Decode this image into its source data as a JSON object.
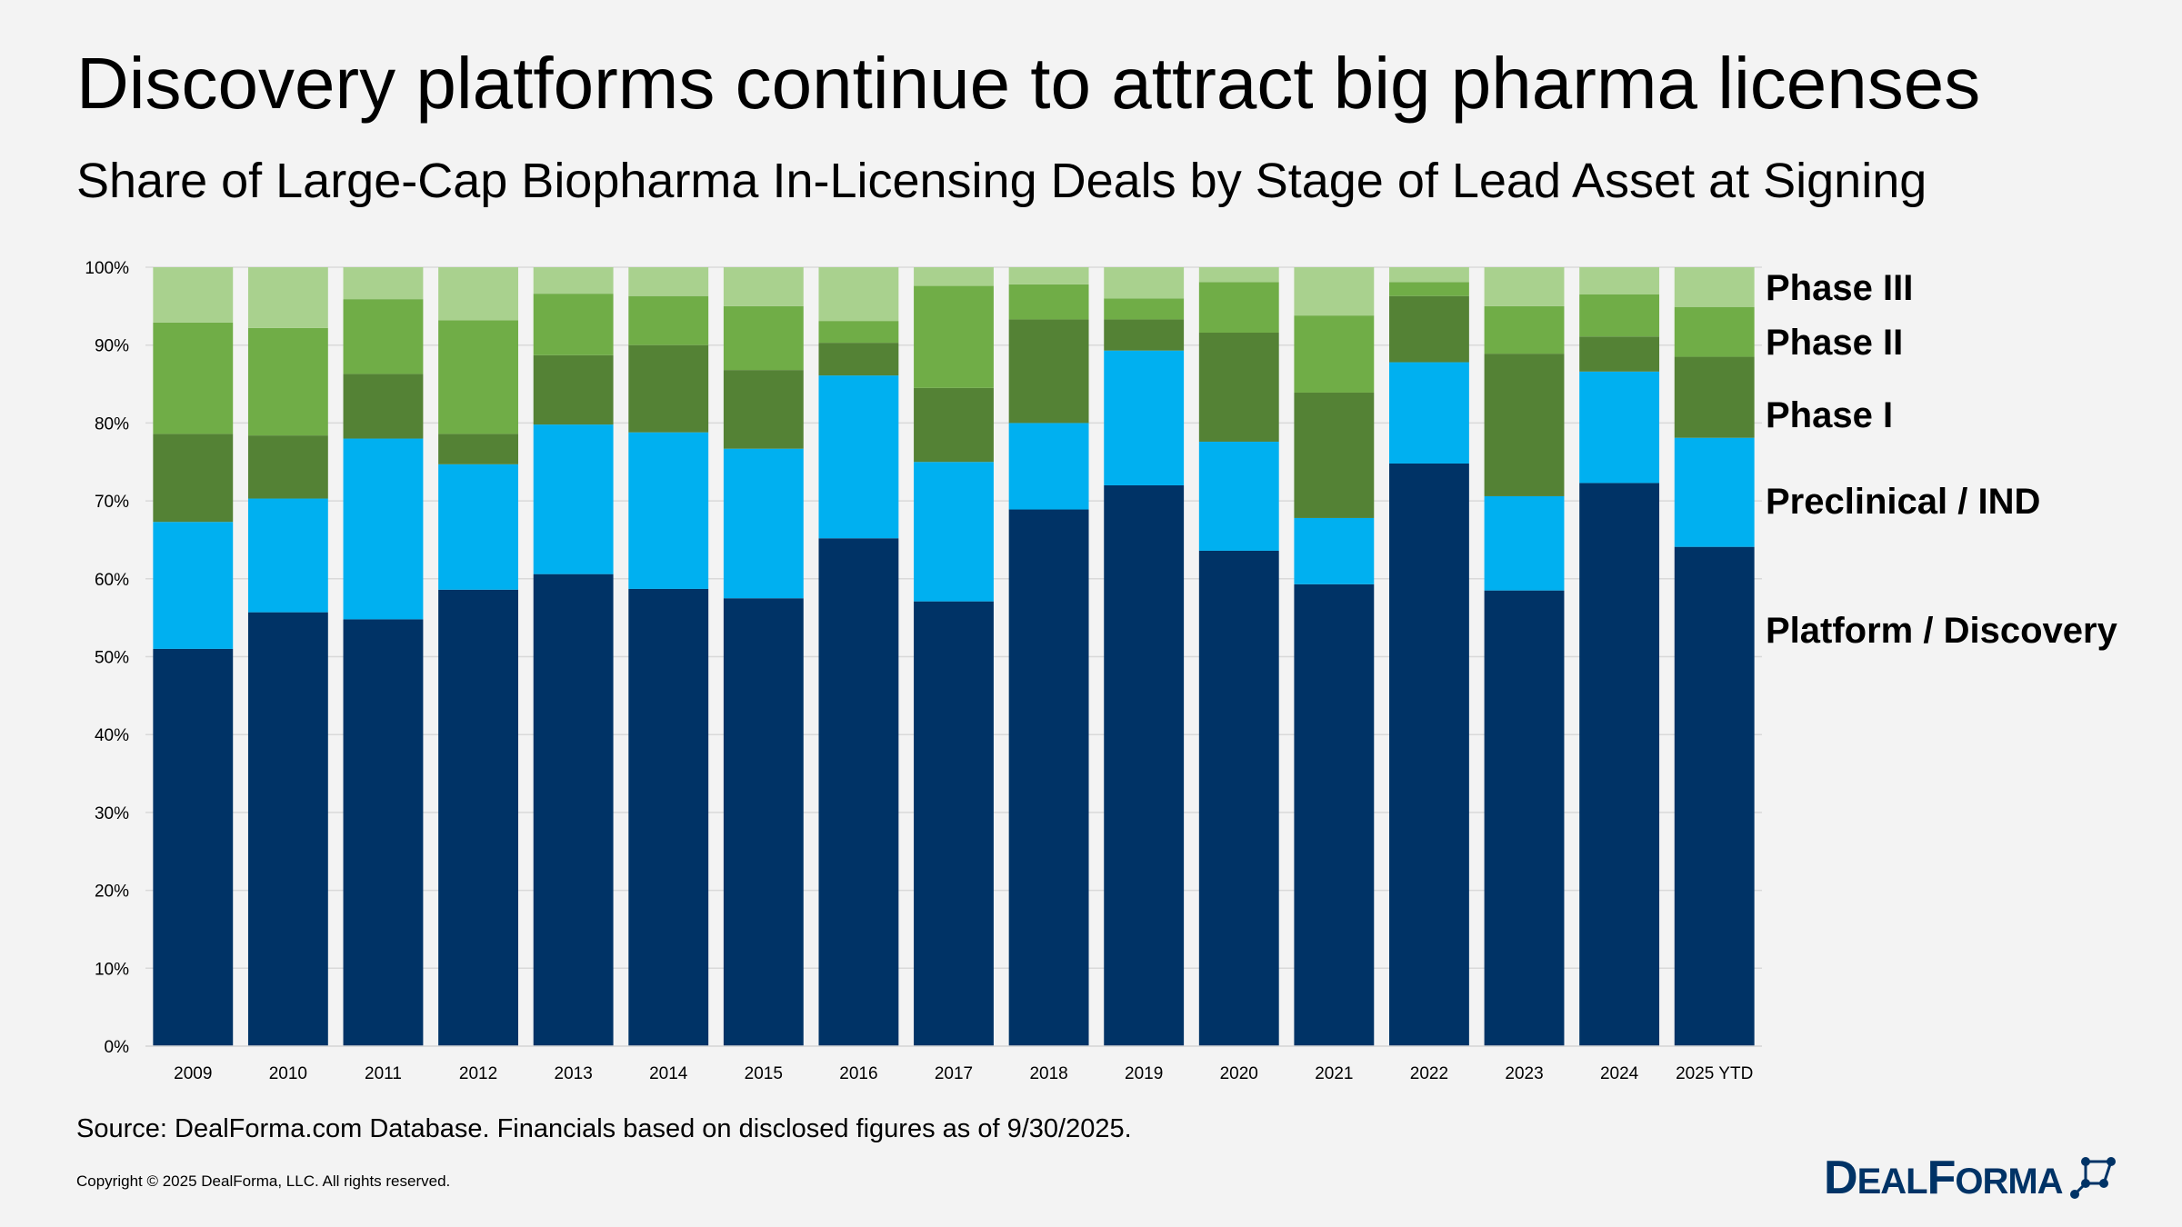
{
  "header": {
    "title": "Discovery platforms continue to attract big pharma licenses",
    "subtitle": "Share of Large-Cap Biopharma In-Licensing Deals by Stage of Lead Asset at Signing"
  },
  "footer": {
    "source": "Source: DealForma.com Database. Financials based on disclosed figures as of 9/30/2025.",
    "copyright": "Copyright © 2025 DealForma, LLC. All rights reserved.",
    "logo_text": "DealForma"
  },
  "colors": {
    "platform_discovery": "#003366",
    "preclinical_ind": "#00b0f0",
    "phase_i": "#548235",
    "phase_ii": "#70ad47",
    "phase_iii": "#a9d18e",
    "background": "#f3f3f3"
  },
  "chart_data": {
    "type": "bar",
    "stacked": true,
    "percent_stacked": true,
    "categories": [
      "2009",
      "2010",
      "2011",
      "2012",
      "2013",
      "2014",
      "2015",
      "2016",
      "2017",
      "2018",
      "2019",
      "2020",
      "2021",
      "2022",
      "2023",
      "2024",
      "2025 YTD"
    ],
    "ylim": [
      0,
      100
    ],
    "y_ticks": [
      "0%",
      "10%",
      "20%",
      "30%",
      "40%",
      "50%",
      "60%",
      "70%",
      "80%",
      "90%",
      "100%"
    ],
    "grid": true,
    "legend_placement": "right",
    "series": [
      {
        "name": "Platform / Discovery",
        "color": "#003366",
        "values": [
          51.0,
          55.7,
          54.8,
          58.6,
          60.6,
          58.7,
          57.5,
          65.2,
          57.1,
          68.9,
          72.0,
          63.6,
          59.3,
          74.8,
          58.5,
          72.3,
          64.1
        ]
      },
      {
        "name": "Preclinical / IND",
        "color": "#00b0f0",
        "values": [
          16.3,
          14.6,
          23.2,
          16.1,
          19.2,
          20.1,
          19.2,
          20.9,
          17.9,
          11.1,
          17.3,
          14.0,
          8.5,
          13.0,
          12.1,
          14.3,
          14.0
        ]
      },
      {
        "name": "Phase I",
        "color": "#548235",
        "values": [
          11.3,
          8.1,
          8.3,
          3.9,
          8.9,
          11.2,
          10.1,
          4.2,
          9.5,
          13.3,
          4.0,
          14.0,
          16.1,
          8.5,
          18.3,
          4.5,
          10.4
        ]
      },
      {
        "name": "Phase II",
        "color": "#70ad47",
        "values": [
          14.3,
          13.8,
          9.6,
          14.6,
          7.9,
          6.3,
          8.2,
          2.8,
          13.1,
          4.5,
          2.7,
          6.5,
          9.9,
          1.8,
          6.1,
          5.4,
          6.4
        ]
      },
      {
        "name": "Phase III",
        "color": "#a9d18e",
        "values": [
          7.1,
          7.8,
          4.1,
          6.8,
          3.4,
          3.7,
          5.0,
          6.9,
          2.4,
          2.2,
          4.0,
          1.9,
          6.2,
          1.9,
          5.0,
          3.5,
          5.1
        ]
      }
    ]
  }
}
